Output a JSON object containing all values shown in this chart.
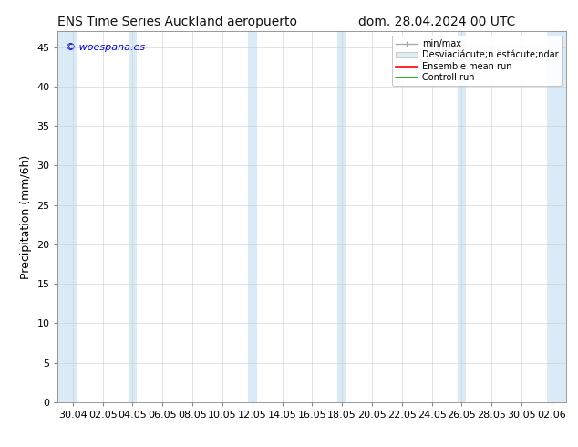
{
  "title_left": "ENS Time Series Auckland aeropuerto",
  "title_right": "dom. 28.04.2024 00 UTC",
  "ylabel": "Precipitation (mm/6h)",
  "ylim": [
    0,
    47
  ],
  "yticks": [
    0,
    5,
    10,
    15,
    20,
    25,
    30,
    35,
    40,
    45
  ],
  "xlabel_ticks": [
    "30.04",
    "02.05",
    "04.05",
    "06.05",
    "08.05",
    "10.05",
    "12.05",
    "14.05",
    "16.05",
    "18.05",
    "20.05",
    "22.05",
    "24.05",
    "26.05",
    "28.05",
    "30.05",
    "02.06"
  ],
  "background_color": "#ffffff",
  "plot_bg_color": "#ffffff",
  "shaded_band_color": "#daeaf6",
  "watermark_text": "© woespana.es",
  "watermark_color": "#0000cc",
  "legend_entries": [
    "min/max",
    "Desviaciácute;n estácute;ndar",
    "Ensemble mean run",
    "Controll run"
  ],
  "legend_line_colors": [
    "#aaaaaa",
    "#cccccc",
    "#ff0000",
    "#00aa00"
  ],
  "band_starts": [
    -0.5,
    1.85,
    5.85,
    8.85,
    12.85,
    15.85
  ],
  "band_ends": [
    0.15,
    2.15,
    6.15,
    9.15,
    13.15,
    16.5
  ],
  "title_fontsize": 10,
  "ylabel_fontsize": 9,
  "tick_fontsize": 8,
  "watermark_fontsize": 8,
  "legend_fontsize": 7
}
